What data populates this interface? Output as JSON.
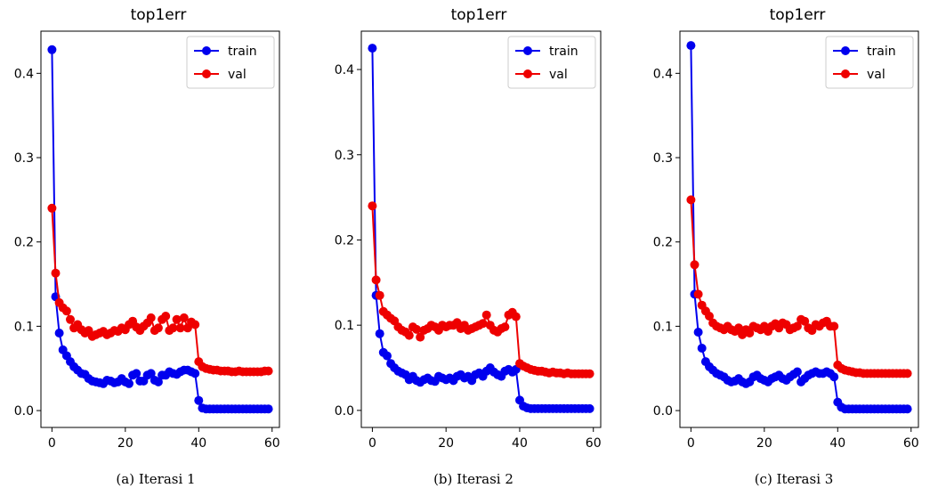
{
  "chart_data": [
    {
      "type": "line",
      "title": "top1err",
      "caption": "(a)  Iterasi 1",
      "xlim": [
        -3,
        62
      ],
      "ylim": [
        -0.02,
        0.45
      ],
      "xticks": [
        0,
        20,
        40,
        60
      ],
      "yticks": [
        0.0,
        0.1,
        0.2,
        0.3,
        0.4
      ],
      "ytick_labels": [
        "0.0",
        "0.1",
        "0.2",
        "0.3",
        "0.4"
      ],
      "legend_position": "upper right",
      "grid": false,
      "series": [
        {
          "name": "train",
          "color": "#0000ee",
          "values": [
            0.428,
            0.135,
            0.092,
            0.072,
            0.065,
            0.058,
            0.052,
            0.048,
            0.044,
            0.043,
            0.038,
            0.035,
            0.034,
            0.033,
            0.032,
            0.036,
            0.035,
            0.033,
            0.034,
            0.038,
            0.034,
            0.032,
            0.042,
            0.044,
            0.035,
            0.035,
            0.042,
            0.044,
            0.036,
            0.034,
            0.042,
            0.042,
            0.046,
            0.044,
            0.043,
            0.046,
            0.048,
            0.048,
            0.046,
            0.044,
            0.012,
            0.003,
            0.002,
            0.002,
            0.002,
            0.002,
            0.002,
            0.002,
            0.002,
            0.002,
            0.002,
            0.002,
            0.002,
            0.002,
            0.002,
            0.002,
            0.002,
            0.002,
            0.002,
            0.002
          ]
        },
        {
          "name": "val",
          "color": "#ee0000",
          "values": [
            0.24,
            0.163,
            0.128,
            0.122,
            0.118,
            0.108,
            0.098,
            0.102,
            0.096,
            0.092,
            0.095,
            0.088,
            0.09,
            0.092,
            0.094,
            0.09,
            0.092,
            0.095,
            0.094,
            0.098,
            0.096,
            0.102,
            0.106,
            0.099,
            0.095,
            0.1,
            0.104,
            0.11,
            0.095,
            0.098,
            0.108,
            0.112,
            0.095,
            0.098,
            0.108,
            0.098,
            0.11,
            0.098,
            0.105,
            0.102,
            0.058,
            0.052,
            0.05,
            0.049,
            0.048,
            0.048,
            0.047,
            0.047,
            0.047,
            0.046,
            0.046,
            0.047,
            0.046,
            0.046,
            0.046,
            0.046,
            0.046,
            0.046,
            0.047,
            0.047
          ]
        }
      ]
    },
    {
      "type": "line",
      "title": "top1err",
      "caption": "(b) Iterasi 2",
      "xlim": [
        -3,
        62
      ],
      "ylim": [
        -0.02,
        0.445
      ],
      "xticks": [
        0,
        20,
        40,
        60
      ],
      "yticks": [
        0.0,
        0.1,
        0.2,
        0.3,
        0.4
      ],
      "ytick_labels": [
        "0.0",
        "0.1",
        "0.2",
        "0.3",
        "0.4"
      ],
      "legend_position": "upper right",
      "grid": false,
      "series": [
        {
          "name": "train",
          "color": "#0000ee",
          "values": [
            0.425,
            0.135,
            0.09,
            0.068,
            0.064,
            0.055,
            0.05,
            0.046,
            0.044,
            0.042,
            0.036,
            0.04,
            0.035,
            0.033,
            0.036,
            0.038,
            0.035,
            0.034,
            0.04,
            0.038,
            0.036,
            0.038,
            0.035,
            0.04,
            0.042,
            0.038,
            0.04,
            0.035,
            0.042,
            0.044,
            0.04,
            0.046,
            0.05,
            0.045,
            0.042,
            0.04,
            0.046,
            0.048,
            0.045,
            0.048,
            0.012,
            0.005,
            0.003,
            0.002,
            0.002,
            0.002,
            0.002,
            0.002,
            0.002,
            0.002,
            0.002,
            0.002,
            0.002,
            0.002,
            0.002,
            0.002,
            0.002,
            0.002,
            0.002,
            0.002
          ]
        },
        {
          "name": "val",
          "color": "#ee0000",
          "values": [
            0.24,
            0.153,
            0.135,
            0.116,
            0.112,
            0.108,
            0.105,
            0.098,
            0.094,
            0.092,
            0.088,
            0.098,
            0.095,
            0.086,
            0.094,
            0.096,
            0.1,
            0.098,
            0.094,
            0.1,
            0.098,
            0.1,
            0.1,
            0.103,
            0.096,
            0.1,
            0.094,
            0.096,
            0.098,
            0.1,
            0.102,
            0.112,
            0.1,
            0.094,
            0.092,
            0.096,
            0.098,
            0.112,
            0.115,
            0.11,
            0.055,
            0.052,
            0.05,
            0.048,
            0.047,
            0.046,
            0.046,
            0.045,
            0.044,
            0.045,
            0.044,
            0.044,
            0.043,
            0.044,
            0.043,
            0.043,
            0.043,
            0.043,
            0.043,
            0.043
          ]
        }
      ]
    },
    {
      "type": "line",
      "title": "top1err",
      "caption": "(c) Iterasi 3",
      "xlim": [
        -3,
        62
      ],
      "ylim": [
        -0.02,
        0.45
      ],
      "xticks": [
        0,
        20,
        40,
        60
      ],
      "yticks": [
        0.0,
        0.1,
        0.2,
        0.3,
        0.4
      ],
      "ytick_labels": [
        "0.0",
        "0.1",
        "0.2",
        "0.3",
        "0.4"
      ],
      "legend_position": "upper right",
      "grid": false,
      "series": [
        {
          "name": "train",
          "color": "#0000ee",
          "values": [
            0.433,
            0.138,
            0.093,
            0.074,
            0.058,
            0.052,
            0.048,
            0.044,
            0.042,
            0.04,
            0.036,
            0.034,
            0.035,
            0.038,
            0.034,
            0.032,
            0.034,
            0.04,
            0.042,
            0.038,
            0.036,
            0.034,
            0.038,
            0.04,
            0.042,
            0.038,
            0.036,
            0.04,
            0.043,
            0.046,
            0.034,
            0.038,
            0.042,
            0.044,
            0.046,
            0.044,
            0.044,
            0.046,
            0.044,
            0.04,
            0.01,
            0.004,
            0.002,
            0.002,
            0.002,
            0.002,
            0.002,
            0.002,
            0.002,
            0.002,
            0.002,
            0.002,
            0.002,
            0.002,
            0.002,
            0.002,
            0.002,
            0.002,
            0.002,
            0.002
          ]
        },
        {
          "name": "val",
          "color": "#ee0000",
          "values": [
            0.25,
            0.173,
            0.138,
            0.125,
            0.118,
            0.112,
            0.104,
            0.1,
            0.098,
            0.096,
            0.1,
            0.096,
            0.094,
            0.098,
            0.09,
            0.096,
            0.092,
            0.1,
            0.098,
            0.096,
            0.1,
            0.094,
            0.1,
            0.103,
            0.098,
            0.104,
            0.102,
            0.096,
            0.098,
            0.1,
            0.108,
            0.106,
            0.098,
            0.095,
            0.102,
            0.1,
            0.104,
            0.106,
            0.1,
            0.1,
            0.054,
            0.05,
            0.048,
            0.047,
            0.046,
            0.045,
            0.045,
            0.044,
            0.044,
            0.044,
            0.044,
            0.044,
            0.044,
            0.044,
            0.044,
            0.044,
            0.044,
            0.044,
            0.044,
            0.044
          ]
        }
      ]
    }
  ]
}
